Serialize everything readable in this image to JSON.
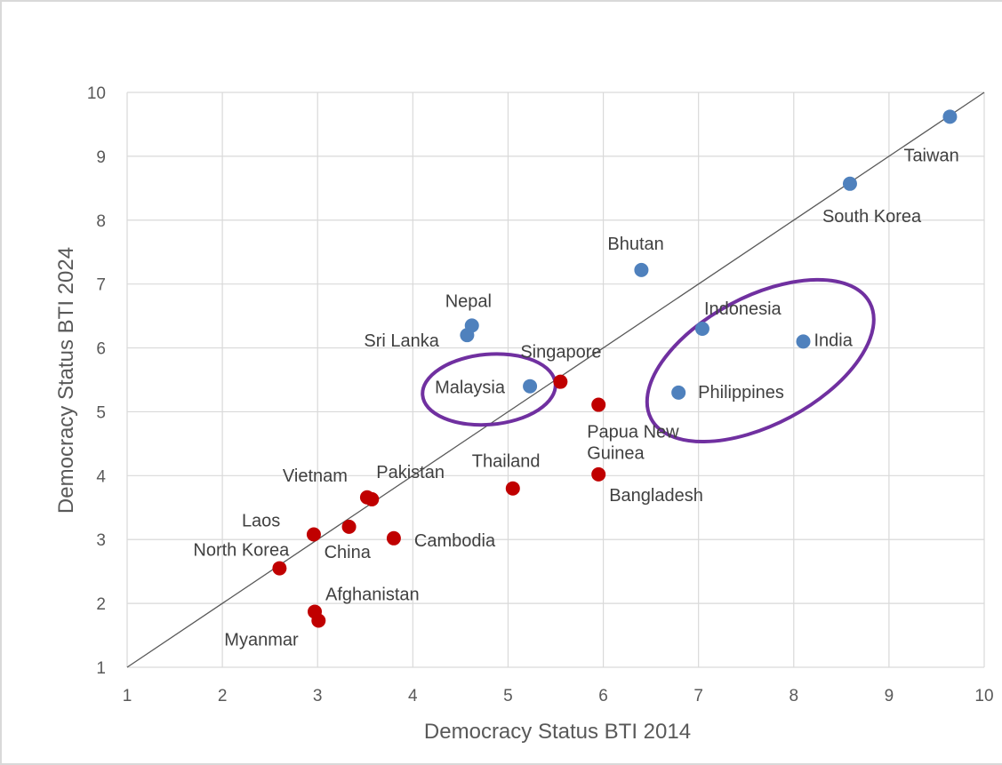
{
  "chart_data": {
    "type": "scatter",
    "xlabel": "Democracy Status BTI 2014",
    "ylabel": "Democracy Status BTI 2024",
    "xlim": [
      1,
      10
    ],
    "ylim": [
      1,
      10
    ],
    "x_ticks": [
      "1",
      "2",
      "3",
      "4",
      "5",
      "6",
      "7",
      "8",
      "9",
      "10"
    ],
    "y_ticks": [
      "1",
      "2",
      "3",
      "4",
      "5",
      "6",
      "7",
      "8",
      "9",
      "10"
    ],
    "grid": true,
    "reference_line": "y = x diagonal",
    "colors": {
      "blue": "#4f81bd",
      "red": "#c00000",
      "ellipse": "#7030a0",
      "grid": "#d9d9d9",
      "line": "#595959"
    },
    "series": [
      {
        "color": "blue",
        "points": [
          {
            "label": "Taiwan",
            "x": 9.64,
            "y": 9.62
          },
          {
            "label": "South Korea",
            "x": 8.59,
            "y": 8.57
          },
          {
            "label": "Bhutan",
            "x": 6.4,
            "y": 7.22
          },
          {
            "label": "Nepal",
            "x": 4.62,
            "y": 6.35
          },
          {
            "label": "Sri Lanka",
            "x": 4.57,
            "y": 6.2
          },
          {
            "label": "Indonesia",
            "x": 7.04,
            "y": 6.3
          },
          {
            "label": "India",
            "x": 8.1,
            "y": 6.1
          },
          {
            "label": "Malaysia",
            "x": 5.23,
            "y": 5.4
          },
          {
            "label": "Philippines",
            "x": 6.79,
            "y": 5.3
          }
        ]
      },
      {
        "color": "red",
        "points": [
          {
            "label": "Singapore",
            "x": 5.55,
            "y": 5.47
          },
          {
            "label": "Papua New Guinea",
            "x": 5.95,
            "y": 5.11
          },
          {
            "label": "Bangladesh",
            "x": 5.95,
            "y": 4.02
          },
          {
            "label": "Thailand",
            "x": 5.05,
            "y": 3.8
          },
          {
            "label": "Pakistan",
            "x": 3.57,
            "y": 3.63
          },
          {
            "label": "Vietnam",
            "x": 3.52,
            "y": 3.66
          },
          {
            "label": "China",
            "x": 3.33,
            "y": 3.2
          },
          {
            "label": "Laos",
            "x": 2.96,
            "y": 3.08
          },
          {
            "label": "Cambodia",
            "x": 3.8,
            "y": 3.02
          },
          {
            "label": "North Korea",
            "x": 2.6,
            "y": 2.55
          },
          {
            "label": "Afghanistan",
            "x": 2.97,
            "y": 1.87
          },
          {
            "label": "Myanmar",
            "x": 3.01,
            "y": 1.73
          }
        ]
      }
    ],
    "annotations": [
      {
        "shape": "ellipse",
        "encloses": [
          "Malaysia"
        ],
        "cx": 4.8,
        "cy": 5.35,
        "rx": 0.7,
        "ry": 0.55,
        "angle_deg": -5
      },
      {
        "shape": "ellipse",
        "encloses": [
          "Indonesia",
          "India",
          "Philippines"
        ],
        "cx": 7.65,
        "cy": 5.8,
        "rx": 1.3,
        "ry": 1.0,
        "angle_deg": -28
      }
    ],
    "label_text": {
      "Taiwan": [
        "Taiwan"
      ],
      "South Korea": [
        "South Korea"
      ],
      "Bhutan": [
        "Bhutan"
      ],
      "Nepal": [
        "Nepal"
      ],
      "Sri Lanka": [
        "Sri Lanka"
      ],
      "Indonesia": [
        "Indonesia"
      ],
      "India": [
        "India"
      ],
      "Malaysia": [
        "Malaysia"
      ],
      "Philippines": [
        "Philippines"
      ],
      "Singapore": [
        "Singapore"
      ],
      "Papua New Guinea": [
        "Papua New",
        "Guinea"
      ],
      "Bangladesh": [
        "Bangladesh"
      ],
      "Thailand": [
        "Thailand"
      ],
      "Pakistan": [
        "Pakistan"
      ],
      "Vietnam": [
        "Vietnam"
      ],
      "China": [
        "China"
      ],
      "Laos": [
        "Laos"
      ],
      "Cambodia": [
        "Cambodia"
      ],
      "North Korea": [
        "North Korea"
      ],
      "Afghanistan": [
        "Afghanistan"
      ],
      "Myanmar": [
        "Myanmar"
      ]
    }
  }
}
